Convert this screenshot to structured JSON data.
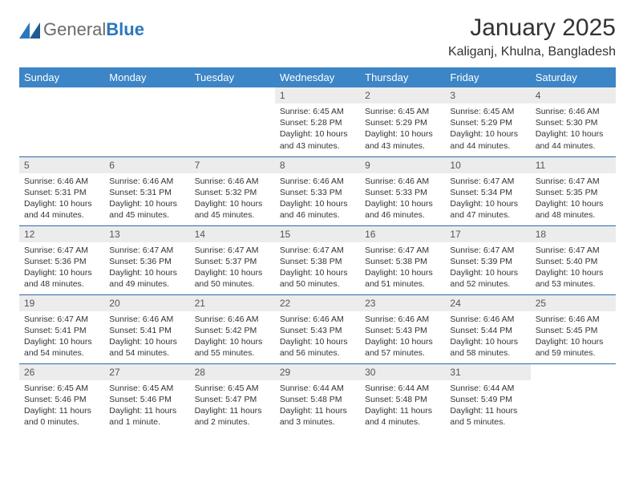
{
  "logo": {
    "word1": "General",
    "word2": "Blue"
  },
  "title": "January 2025",
  "subtitle": "Kaliganj, Khulna, Bangladesh",
  "colors": {
    "header_bg": "#3c85c6",
    "header_text": "#ffffff",
    "daynum_bg": "#ececec",
    "body_text": "#333333",
    "rule": "#2b6aa8",
    "logo_gray": "#6b6b6b",
    "logo_blue": "#2b77bd"
  },
  "dayNames": [
    "Sunday",
    "Monday",
    "Tuesday",
    "Wednesday",
    "Thursday",
    "Friday",
    "Saturday"
  ],
  "weeks": [
    [
      null,
      null,
      null,
      {
        "n": "1",
        "sr": "6:45 AM",
        "ss": "5:28 PM",
        "dl": "10 hours and 43 minutes."
      },
      {
        "n": "2",
        "sr": "6:45 AM",
        "ss": "5:29 PM",
        "dl": "10 hours and 43 minutes."
      },
      {
        "n": "3",
        "sr": "6:45 AM",
        "ss": "5:29 PM",
        "dl": "10 hours and 44 minutes."
      },
      {
        "n": "4",
        "sr": "6:46 AM",
        "ss": "5:30 PM",
        "dl": "10 hours and 44 minutes."
      }
    ],
    [
      {
        "n": "5",
        "sr": "6:46 AM",
        "ss": "5:31 PM",
        "dl": "10 hours and 44 minutes."
      },
      {
        "n": "6",
        "sr": "6:46 AM",
        "ss": "5:31 PM",
        "dl": "10 hours and 45 minutes."
      },
      {
        "n": "7",
        "sr": "6:46 AM",
        "ss": "5:32 PM",
        "dl": "10 hours and 45 minutes."
      },
      {
        "n": "8",
        "sr": "6:46 AM",
        "ss": "5:33 PM",
        "dl": "10 hours and 46 minutes."
      },
      {
        "n": "9",
        "sr": "6:46 AM",
        "ss": "5:33 PM",
        "dl": "10 hours and 46 minutes."
      },
      {
        "n": "10",
        "sr": "6:47 AM",
        "ss": "5:34 PM",
        "dl": "10 hours and 47 minutes."
      },
      {
        "n": "11",
        "sr": "6:47 AM",
        "ss": "5:35 PM",
        "dl": "10 hours and 48 minutes."
      }
    ],
    [
      {
        "n": "12",
        "sr": "6:47 AM",
        "ss": "5:36 PM",
        "dl": "10 hours and 48 minutes."
      },
      {
        "n": "13",
        "sr": "6:47 AM",
        "ss": "5:36 PM",
        "dl": "10 hours and 49 minutes."
      },
      {
        "n": "14",
        "sr": "6:47 AM",
        "ss": "5:37 PM",
        "dl": "10 hours and 50 minutes."
      },
      {
        "n": "15",
        "sr": "6:47 AM",
        "ss": "5:38 PM",
        "dl": "10 hours and 50 minutes."
      },
      {
        "n": "16",
        "sr": "6:47 AM",
        "ss": "5:38 PM",
        "dl": "10 hours and 51 minutes."
      },
      {
        "n": "17",
        "sr": "6:47 AM",
        "ss": "5:39 PM",
        "dl": "10 hours and 52 minutes."
      },
      {
        "n": "18",
        "sr": "6:47 AM",
        "ss": "5:40 PM",
        "dl": "10 hours and 53 minutes."
      }
    ],
    [
      {
        "n": "19",
        "sr": "6:47 AM",
        "ss": "5:41 PM",
        "dl": "10 hours and 54 minutes."
      },
      {
        "n": "20",
        "sr": "6:46 AM",
        "ss": "5:41 PM",
        "dl": "10 hours and 54 minutes."
      },
      {
        "n": "21",
        "sr": "6:46 AM",
        "ss": "5:42 PM",
        "dl": "10 hours and 55 minutes."
      },
      {
        "n": "22",
        "sr": "6:46 AM",
        "ss": "5:43 PM",
        "dl": "10 hours and 56 minutes."
      },
      {
        "n": "23",
        "sr": "6:46 AM",
        "ss": "5:43 PM",
        "dl": "10 hours and 57 minutes."
      },
      {
        "n": "24",
        "sr": "6:46 AM",
        "ss": "5:44 PM",
        "dl": "10 hours and 58 minutes."
      },
      {
        "n": "25",
        "sr": "6:46 AM",
        "ss": "5:45 PM",
        "dl": "10 hours and 59 minutes."
      }
    ],
    [
      {
        "n": "26",
        "sr": "6:45 AM",
        "ss": "5:46 PM",
        "dl": "11 hours and 0 minutes."
      },
      {
        "n": "27",
        "sr": "6:45 AM",
        "ss": "5:46 PM",
        "dl": "11 hours and 1 minute."
      },
      {
        "n": "28",
        "sr": "6:45 AM",
        "ss": "5:47 PM",
        "dl": "11 hours and 2 minutes."
      },
      {
        "n": "29",
        "sr": "6:44 AM",
        "ss": "5:48 PM",
        "dl": "11 hours and 3 minutes."
      },
      {
        "n": "30",
        "sr": "6:44 AM",
        "ss": "5:48 PM",
        "dl": "11 hours and 4 minutes."
      },
      {
        "n": "31",
        "sr": "6:44 AM",
        "ss": "5:49 PM",
        "dl": "11 hours and 5 minutes."
      },
      null
    ]
  ],
  "labels": {
    "sunrise": "Sunrise: ",
    "sunset": "Sunset: ",
    "daylight": "Daylight: "
  }
}
